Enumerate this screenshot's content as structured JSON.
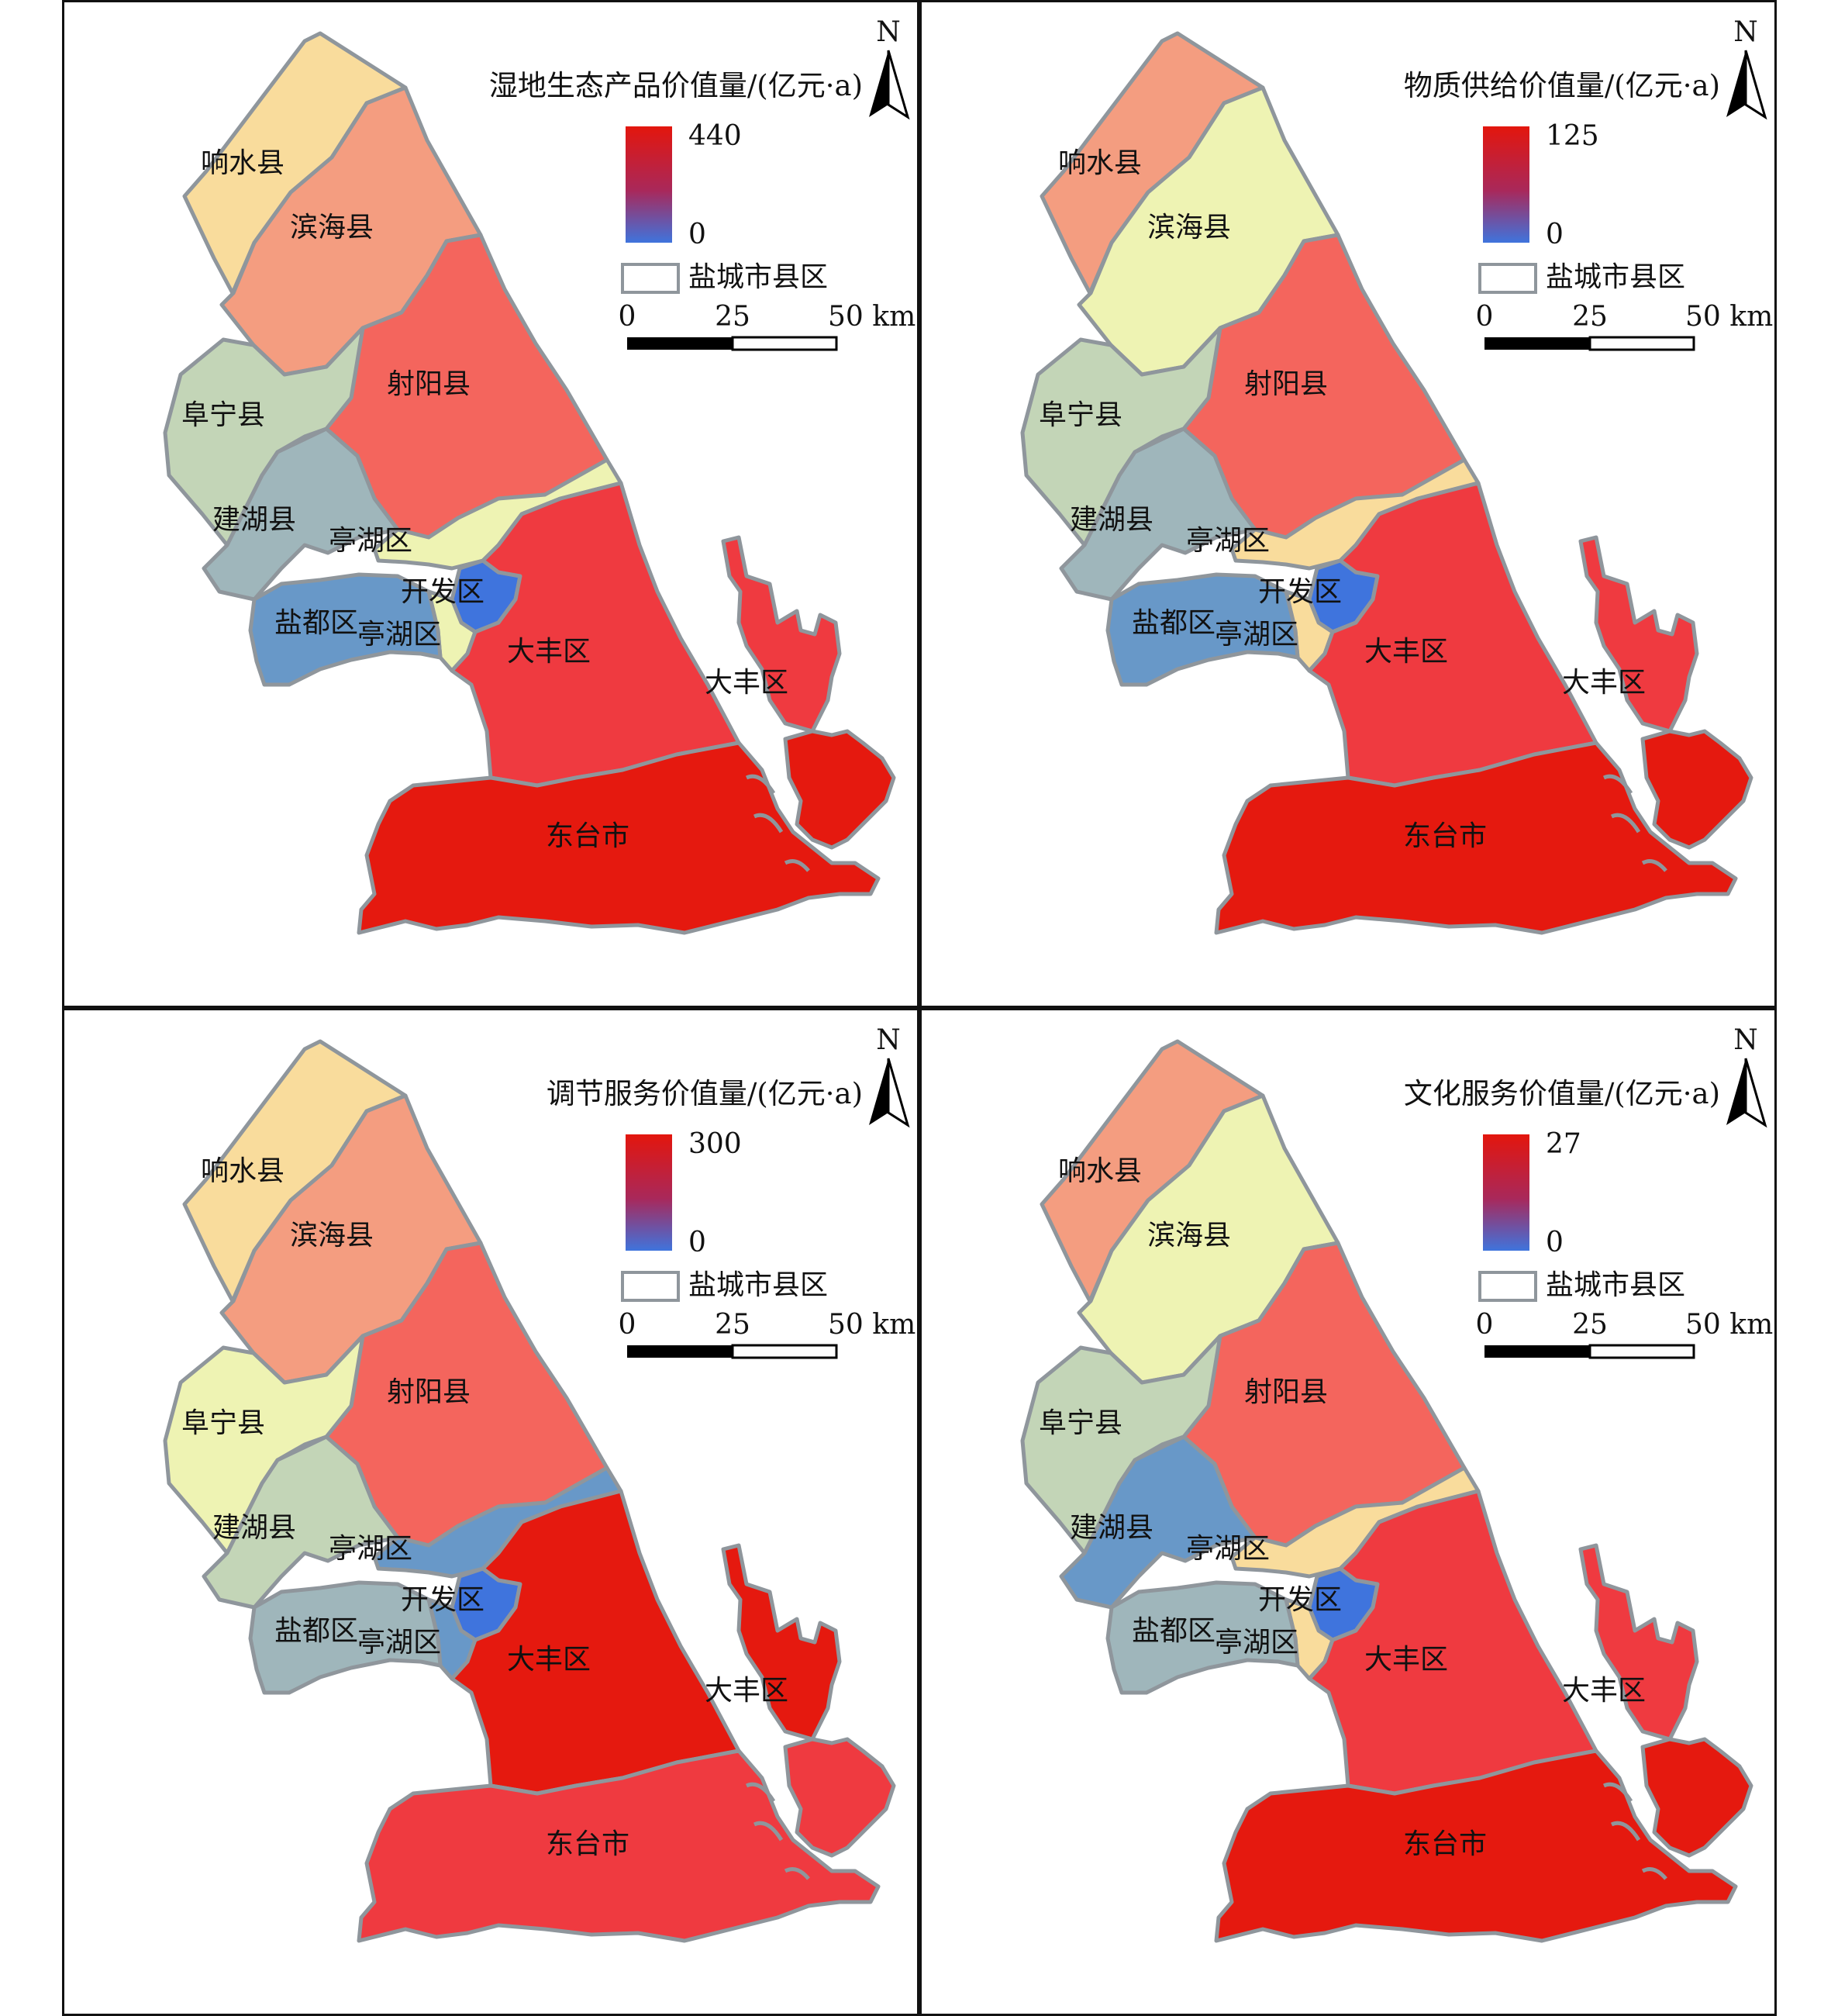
{
  "colors": {
    "high": "#e3160d",
    "low": "#3f74dd",
    "boundary": "#8f969c",
    "dark_red": "#e5190f",
    "red": "#ef3a40",
    "salmon_red": "#f4655d",
    "salmon": "#f49d80",
    "light_orange": "#f9dc9c",
    "pale_yellow": "#eef3b3",
    "light_green": "#c3d5b7",
    "gray_blue": "#9fb6bb",
    "steel_blue": "#6898c8",
    "blue": "#3f74dd"
  },
  "legend_common": {
    "boundary_label": "盐城市县区",
    "scale_ticks": [
      "0",
      "25",
      "50 km"
    ],
    "north": "N"
  },
  "panels": [
    {
      "title": "湿地生态产品价值量/(亿元·a)",
      "max": "440",
      "min": "0",
      "labels": {
        "xiangshui": "响水县",
        "binhai": "滨海县",
        "sheyang": "射阳县",
        "funing": "阜宁县",
        "jianhu": "建湖县",
        "tinghu_n": "亭湖区",
        "kaifa": "开发区",
        "yandu": "盐都区",
        "tinghu_s": "亭湖区",
        "dafeng": "大丰区",
        "dafeng_e": "大丰区",
        "dongtai": "东台市"
      },
      "fills": {
        "xiangshui": "light_orange",
        "binhai": "salmon",
        "sheyang": "salmon_red",
        "funing": "light_green",
        "jianhu": "gray_blue",
        "tinghu": "pale_yellow",
        "kaifa": "blue",
        "yandu": "steel_blue",
        "dafeng": "red",
        "dongtai": "dark_red"
      }
    },
    {
      "title": "物质供给价值量/(亿元·a)",
      "max": "125",
      "min": "0",
      "labels": {
        "xiangshui": "响水县",
        "binhai": "滨海县",
        "sheyang": "射阳县",
        "funing": "阜宁县",
        "jianhu": "建湖县",
        "tinghu_n": "亭湖区",
        "kaifa": "开发区",
        "yandu": "盐都区",
        "tinghu_s": "亭湖区",
        "dafeng": "大丰区",
        "dafeng_e": "大丰区",
        "dongtai": "东台市"
      },
      "fills": {
        "xiangshui": "salmon",
        "binhai": "pale_yellow",
        "sheyang": "salmon_red",
        "funing": "light_green",
        "jianhu": "gray_blue",
        "tinghu": "light_orange",
        "kaifa": "blue",
        "yandu": "steel_blue",
        "dafeng": "red",
        "dongtai": "dark_red"
      }
    },
    {
      "title": "调节服务价值量/(亿元·a)",
      "max": "300",
      "min": "0",
      "labels": {
        "xiangshui": "响水县",
        "binhai": "滨海县",
        "sheyang": "射阳县",
        "funing": "阜宁县",
        "jianhu": "建湖县",
        "tinghu_n": "亭湖区",
        "kaifa": "开发区",
        "yandu": "盐都区",
        "tinghu_s": "亭湖区",
        "dafeng": "大丰区",
        "dafeng_e": "大丰区",
        "dongtai": "东台市"
      },
      "fills": {
        "xiangshui": "light_orange",
        "binhai": "salmon",
        "sheyang": "salmon_red",
        "funing": "pale_yellow",
        "jianhu": "light_green",
        "tinghu": "steel_blue",
        "kaifa": "blue",
        "yandu": "gray_blue",
        "dafeng": "dark_red",
        "dongtai": "red"
      }
    },
    {
      "title": "文化服务价值量/(亿元·a)",
      "max": "27",
      "min": "0",
      "labels": {
        "xiangshui": "响水县",
        "binhai": "滨海县",
        "sheyang": "射阳县",
        "funing": "阜宁县",
        "jianhu": "建湖县",
        "tinghu_n": "亭湖区",
        "kaifa": "开发区",
        "yandu": "盐都区",
        "tinghu_s": "亭湖区",
        "dafeng": "大丰区",
        "dafeng_e": "大丰区",
        "dongtai": "东台市"
      },
      "fills": {
        "xiangshui": "salmon",
        "binhai": "pale_yellow",
        "sheyang": "salmon_red",
        "funing": "light_green",
        "jianhu": "steel_blue",
        "tinghu": "light_orange",
        "kaifa": "blue",
        "yandu": "gray_blue",
        "dafeng": "red",
        "dongtai": "dark_red"
      }
    }
  ]
}
